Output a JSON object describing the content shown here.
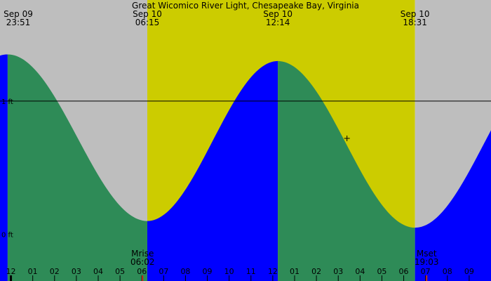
{
  "colors": {
    "night": "#bebebe",
    "day": "#cccc00",
    "rising": "#0000ff",
    "falling": "#2e8b57",
    "line": "#000000",
    "moon_marker": "#c03020",
    "axis_marker": "#000000"
  },
  "chart_data": {
    "type": "area",
    "title": "Great Wicomico River Light, Chesapeake Bay, Virginia",
    "x_range_hours": [
      -0.5,
      22.0
    ],
    "y_range_ft": [
      -0.35,
      1.6
    ],
    "y_ticks": [
      {
        "value": 1,
        "label": "1 ft"
      },
      {
        "value": 0,
        "label": "0 ft"
      }
    ],
    "reference_level_ft": 1,
    "daylight": {
      "sunrise_hour": 6.25,
      "sunset_hour": 18.517
    },
    "tide_extremes": [
      {
        "hour": -0.15,
        "height_ft": 1.35,
        "type": "high",
        "date": "Sep 09",
        "time": "23:51"
      },
      {
        "hour": 6.25,
        "height_ft": 0.1,
        "type": "low",
        "date": "Sep 10",
        "time": "06:15"
      },
      {
        "hour": 12.233,
        "height_ft": 1.3,
        "type": "high",
        "date": "Sep 10",
        "time": "12:14"
      },
      {
        "hour": 18.517,
        "height_ft": 0.05,
        "type": "low",
        "date": "Sep 10",
        "time": "18:31"
      }
    ],
    "extreme_labels": [
      {
        "date": "Sep 09",
        "time": "23:51"
      },
      {
        "date": "Sep 10",
        "time": "06:15"
      },
      {
        "date": "Sep 10",
        "time": "12:14"
      },
      {
        "date": "Sep 10",
        "time": "18:31"
      }
    ],
    "x_ticks": [
      {
        "hour": -1,
        "label": "1"
      },
      {
        "hour": 0,
        "label": "12"
      },
      {
        "hour": 1,
        "label": "01"
      },
      {
        "hour": 2,
        "label": "02"
      },
      {
        "hour": 3,
        "label": "03"
      },
      {
        "hour": 4,
        "label": "04"
      },
      {
        "hour": 5,
        "label": "05"
      },
      {
        "hour": 6,
        "label": "06"
      },
      {
        "hour": 7,
        "label": "07"
      },
      {
        "hour": 8,
        "label": "08"
      },
      {
        "hour": 9,
        "label": "09"
      },
      {
        "hour": 10,
        "label": "10"
      },
      {
        "hour": 11,
        "label": "11"
      },
      {
        "hour": 12,
        "label": "12"
      },
      {
        "hour": 13,
        "label": "01"
      },
      {
        "hour": 14,
        "label": "02"
      },
      {
        "hour": 15,
        "label": "03"
      },
      {
        "hour": 16,
        "label": "04"
      },
      {
        "hour": 17,
        "label": "05"
      },
      {
        "hour": 18,
        "label": "06"
      },
      {
        "hour": 19,
        "label": "07"
      },
      {
        "hour": 20,
        "label": "08"
      },
      {
        "hour": 21,
        "label": "09"
      }
    ],
    "moon_events": [
      {
        "label": "Mrise",
        "time": "06:02",
        "hour": 6.033
      },
      {
        "label": "Mset",
        "time": "19:03",
        "hour": 19.05
      }
    ],
    "current_marker": {
      "hour": 15.4,
      "height_ft": 0.72
    }
  }
}
